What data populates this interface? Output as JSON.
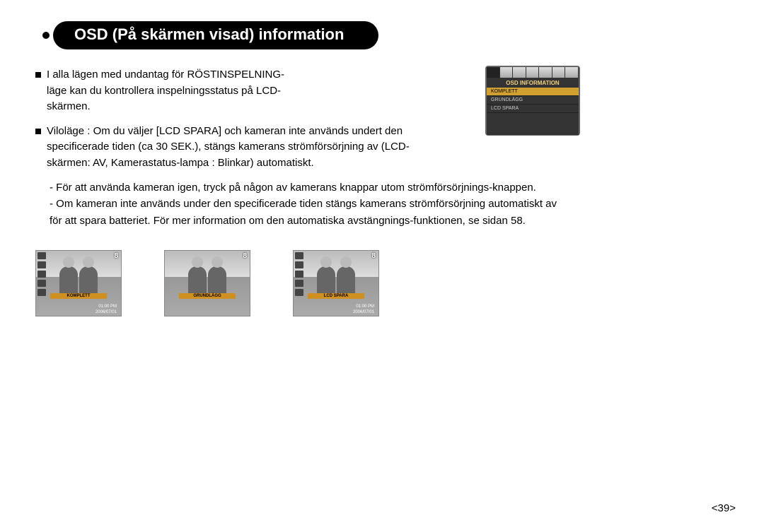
{
  "title": "OSD (På skärmen visad) information",
  "para1": "I alla lägen med undantag för RÖSTINSPELNING-läge kan du kontrollera inspelningsstatus på LCD-skärmen.",
  "para2": "Viloläge : Om du väljer [LCD SPARA] och kameran inte används undert den specificerade tiden (ca 30 SEK.), stängs kamerans strömförsörjning av (LCD-skärmen: AV, Kamerastatus-lampa : Blinkar) automatiskt.",
  "sub1": "- För att använda kameran igen, tryck på någon av kamerans  knappar utom strömförsörjnings-knappen.",
  "sub2": "- Om kameran inte används under den specificerade tiden stängs kamerans strömförsörjning automatiskt av för att spara batteriet. För mer information om den automatiska avstängnings-funktionen, se sidan 58.",
  "menu": {
    "title": "OSD INFORMATION",
    "items": [
      "KOMPLETT",
      "GRUNDLÄGG",
      "LCD SPARA"
    ],
    "selected_index": 0,
    "highlight_color": "#d0a030",
    "title_color": "#f0d080"
  },
  "thumbs": [
    {
      "label": "KOMPLETT",
      "num": "8",
      "time": "01:00 PM",
      "date": "2006/07/01",
      "show_icons": true
    },
    {
      "label": "GRUNDLÄGG",
      "num": "8",
      "time": "",
      "date": "",
      "show_icons": false
    },
    {
      "label": "LCD SPARA",
      "num": "8",
      "time": "01:00 PM",
      "date": "2006/07/01",
      "show_icons": true
    }
  ],
  "thumb_label_bg": "#d09020",
  "page_number": "<39>"
}
